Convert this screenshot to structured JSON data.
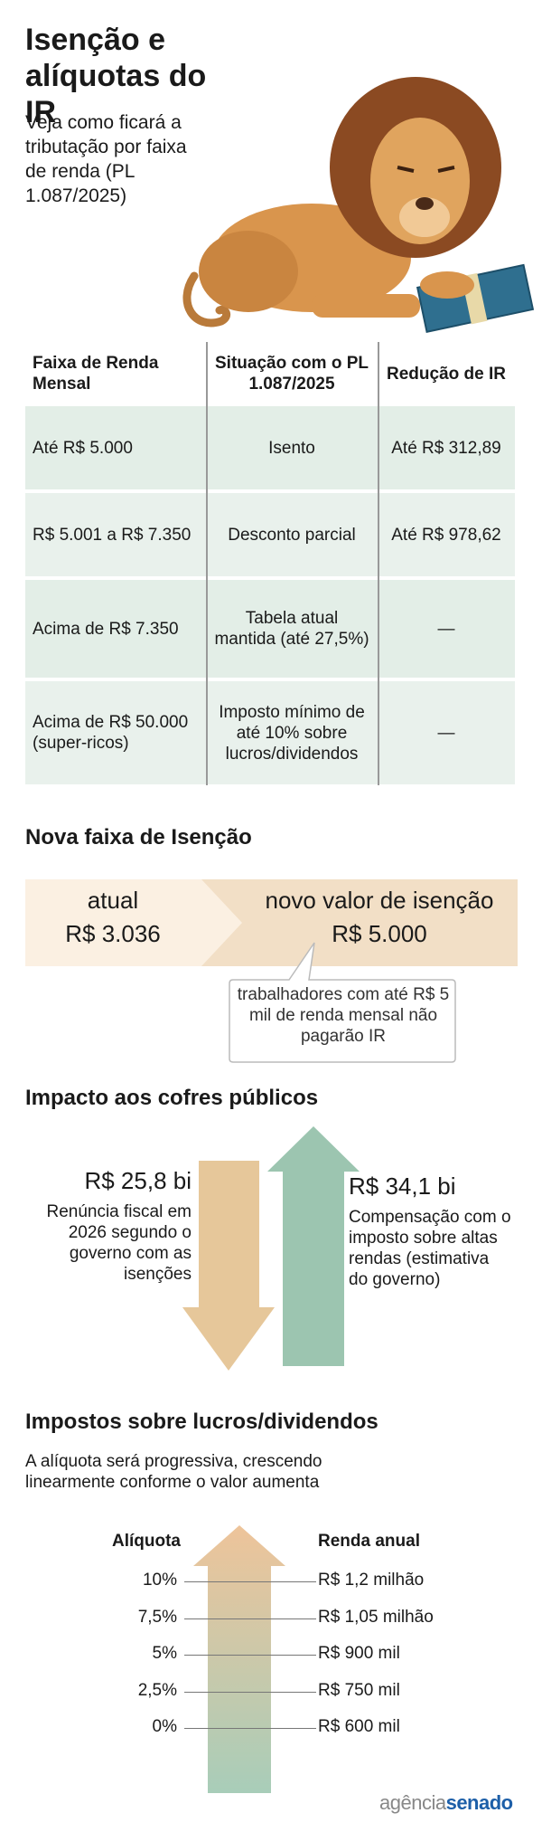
{
  "header": {
    "title": "Isenção e alíquotas do IR",
    "subtitle": "Veja como ficará a tributação por faixa de renda (PL 1.087/2025)"
  },
  "table": {
    "columns": [
      "Faixa de Renda Mensal",
      "Situação com o PL 1.087/2025",
      "Redução de IR"
    ],
    "rows": [
      [
        "Até R$ 5.000",
        "Isento",
        "Até R$ 312,89"
      ],
      [
        "R$ 5.001 a R$ 7.350",
        "Desconto parcial",
        "Até R$ 978,62"
      ],
      [
        "Acima de R$ 7.350",
        "Tabela atual mantida (até 27,5%)",
        "—"
      ],
      [
        "Acima de R$ 50.000 (super-ricos)",
        "Imposto mínimo de até 10% sobre lucros/dividendos",
        "—"
      ]
    ]
  },
  "exemption": {
    "title": "Nova faixa de Isenção",
    "current_label": "atual",
    "current_value": "R$ 3.036",
    "new_label": "novo valor de isenção",
    "new_value": "R$ 5.000",
    "note": "trabalhadores com até R$ 5 mil de renda mensal não pagarão IR"
  },
  "impact": {
    "title": "Impacto aos cofres públicos",
    "loss_value": "R$ 25,8 bi",
    "loss_text": "Renúncia fiscal em 2026 segundo o governo com as isenções",
    "gain_value": "R$ 34,1 bi",
    "gain_text": "Compensação com o imposto sobre altas rendas (estimativa do governo)"
  },
  "dividends": {
    "title": "Impostos sobre lucros/dividendos",
    "subtitle": "A alíquota será progressiva, crescendo linearmente conforme o valor aumenta",
    "rate_header": "Alíquota",
    "income_header": "Renda anual",
    "rows": [
      [
        "10%",
        "R$ 1,2 milhão"
      ],
      [
        "7,5%",
        "R$ 1,05 milhão"
      ],
      [
        "5%",
        "R$ 900 mil"
      ],
      [
        "2,5%",
        "R$ 750 mil"
      ],
      [
        "0%",
        "R$ 600 mil"
      ]
    ]
  },
  "footer": {
    "logo_prefix": "agência",
    "logo_suffix": "senado"
  }
}
